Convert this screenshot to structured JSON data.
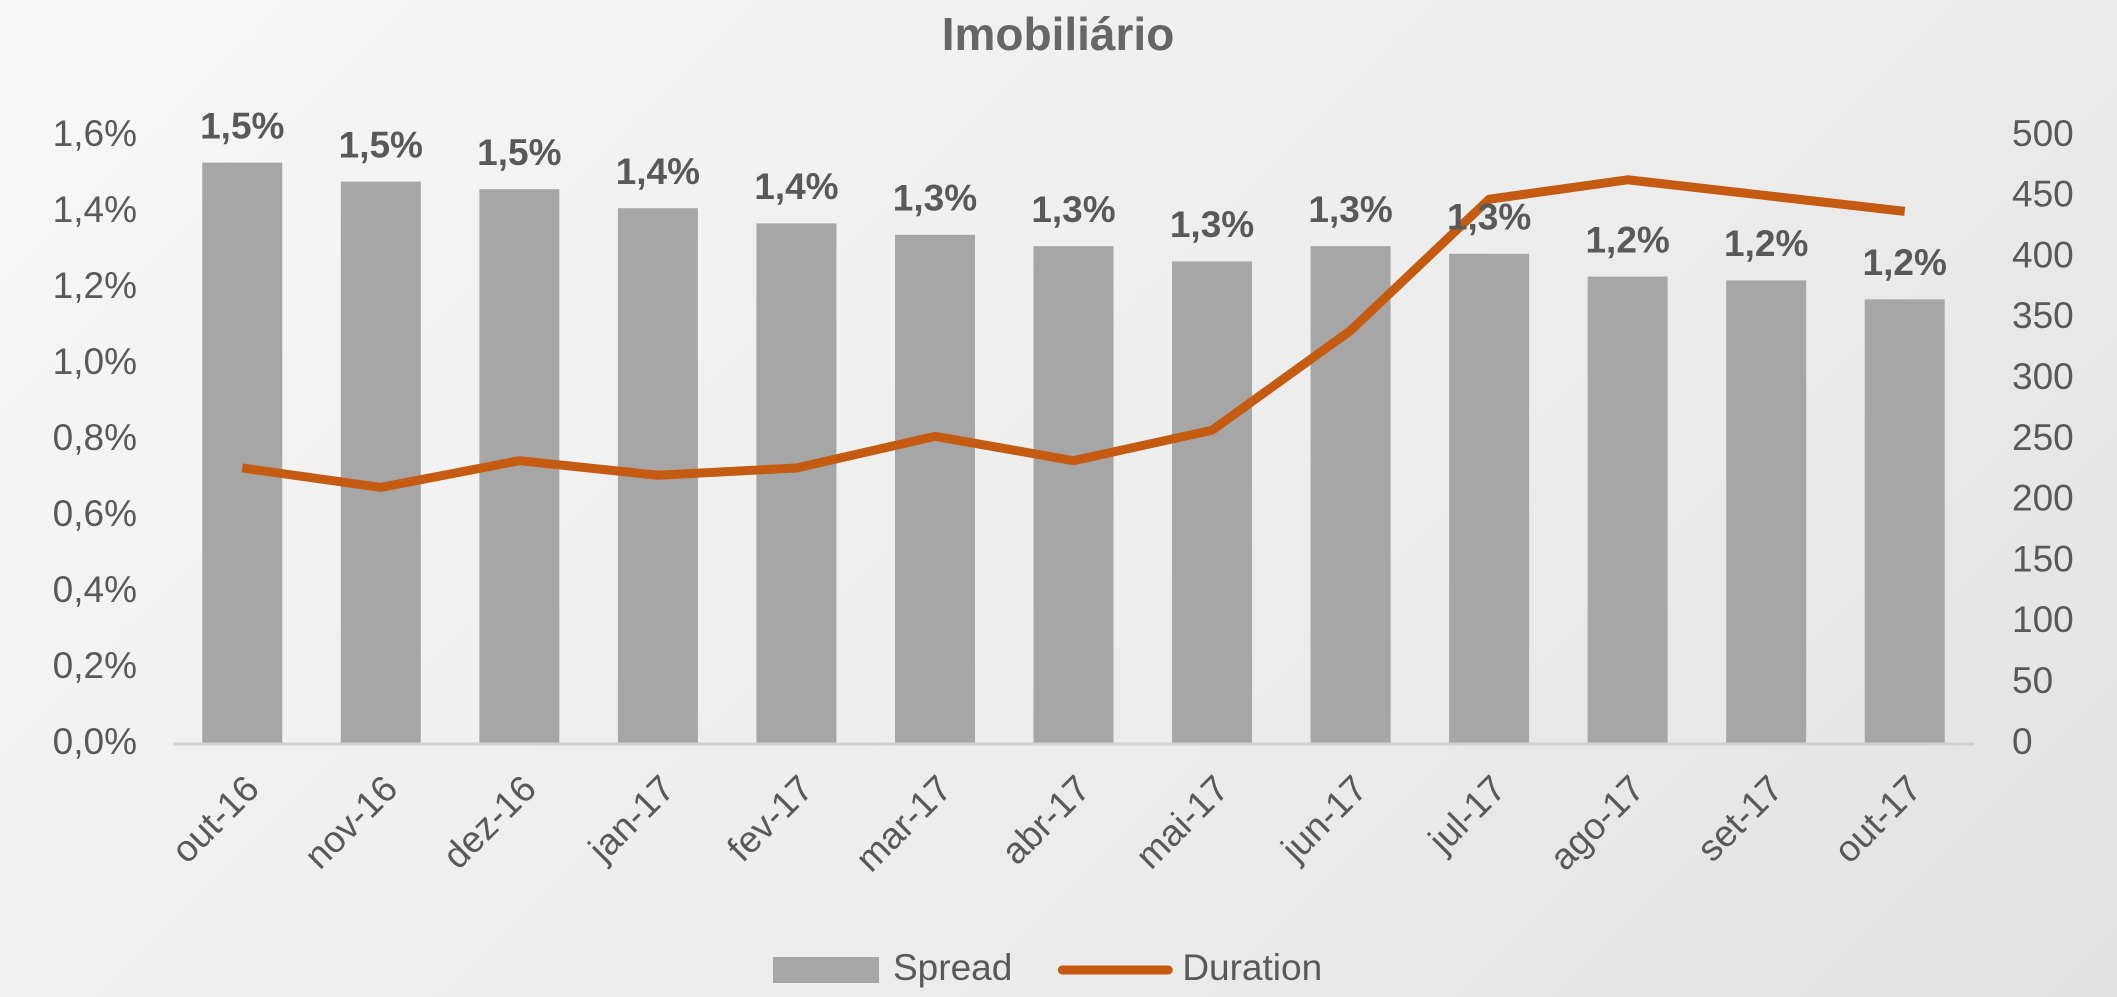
{
  "chart_data": {
    "type": "bar_line",
    "title": "Imobiliário",
    "categories": [
      "out-16",
      "nov-16",
      "dez-16",
      "jan-17",
      "fev-17",
      "mar-17",
      "abr-17",
      "mai-17",
      "jun-17",
      "jul-17",
      "ago-17",
      "set-17",
      "out-17"
    ],
    "series": [
      {
        "name": "Spread",
        "type": "bar",
        "color": "#a6a6a6",
        "values": [
          1.53,
          1.48,
          1.46,
          1.41,
          1.37,
          1.34,
          1.31,
          1.27,
          1.31,
          1.29,
          1.23,
          1.22,
          1.17
        ],
        "value_labels": [
          "1,5%",
          "1,5%",
          "1,5%",
          "1,4%",
          "1,4%",
          "1,3%",
          "1,3%",
          "1,3%",
          "1,3%",
          "1,3%",
          "1,2%",
          "1,2%",
          "1,2%"
        ]
      },
      {
        "name": "Duration",
        "type": "line",
        "axis": "y2",
        "color": "#c55a11",
        "values": [
          227,
          211,
          233,
          221,
          227,
          253,
          233,
          258,
          340,
          448,
          464,
          451,
          438
        ]
      }
    ],
    "ylim": [
      0,
      1.6
    ],
    "yticks": [
      {
        "value": 0,
        "label": "0,0%"
      },
      {
        "value": 0.2,
        "label": "0,2%"
      },
      {
        "value": 0.4,
        "label": "0,4%"
      },
      {
        "value": 0.6,
        "label": "0,6%"
      },
      {
        "value": 0.8,
        "label": "0,8%"
      },
      {
        "value": 1.0,
        "label": "1,0%"
      },
      {
        "value": 1.2,
        "label": "1,2%"
      },
      {
        "value": 1.4,
        "label": "1,4%"
      },
      {
        "value": 1.6,
        "label": "1,6%"
      }
    ],
    "y2lim": [
      0,
      500
    ],
    "y2ticks": [
      0,
      50,
      100,
      150,
      200,
      250,
      300,
      350,
      400,
      450,
      500
    ],
    "legend": "bottom"
  }
}
